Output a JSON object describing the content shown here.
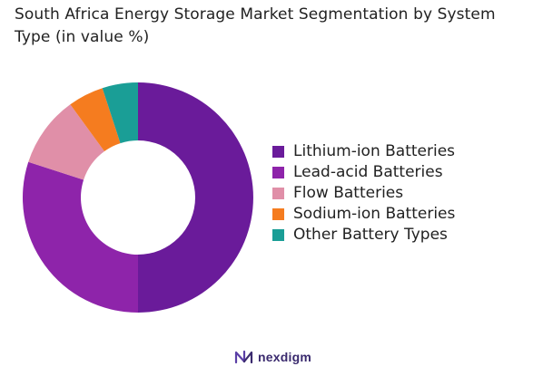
{
  "title": "South Africa Energy Storage Market Segmentation by System Type (in value %)",
  "brand": {
    "name": "nexdigm",
    "icon": "nexdigm-logo-icon"
  },
  "chart_data": {
    "type": "pie",
    "subtype": "donut",
    "title": "South Africa Energy Storage Market Segmentation by System Type (in value %)",
    "categories": [
      "Lithium-ion Batteries",
      "Lead-acid Batteries",
      "Flow Batteries",
      "Sodium-ion Batteries",
      "Other Battery Types"
    ],
    "values": [
      50,
      30,
      10,
      5,
      5
    ],
    "colors": [
      "#6a1b9a",
      "#8e24aa",
      "#e08fa8",
      "#f57c1f",
      "#1a9e96"
    ],
    "legend_placement": "right",
    "start_angle": "top (12 o'clock), clockwise"
  }
}
